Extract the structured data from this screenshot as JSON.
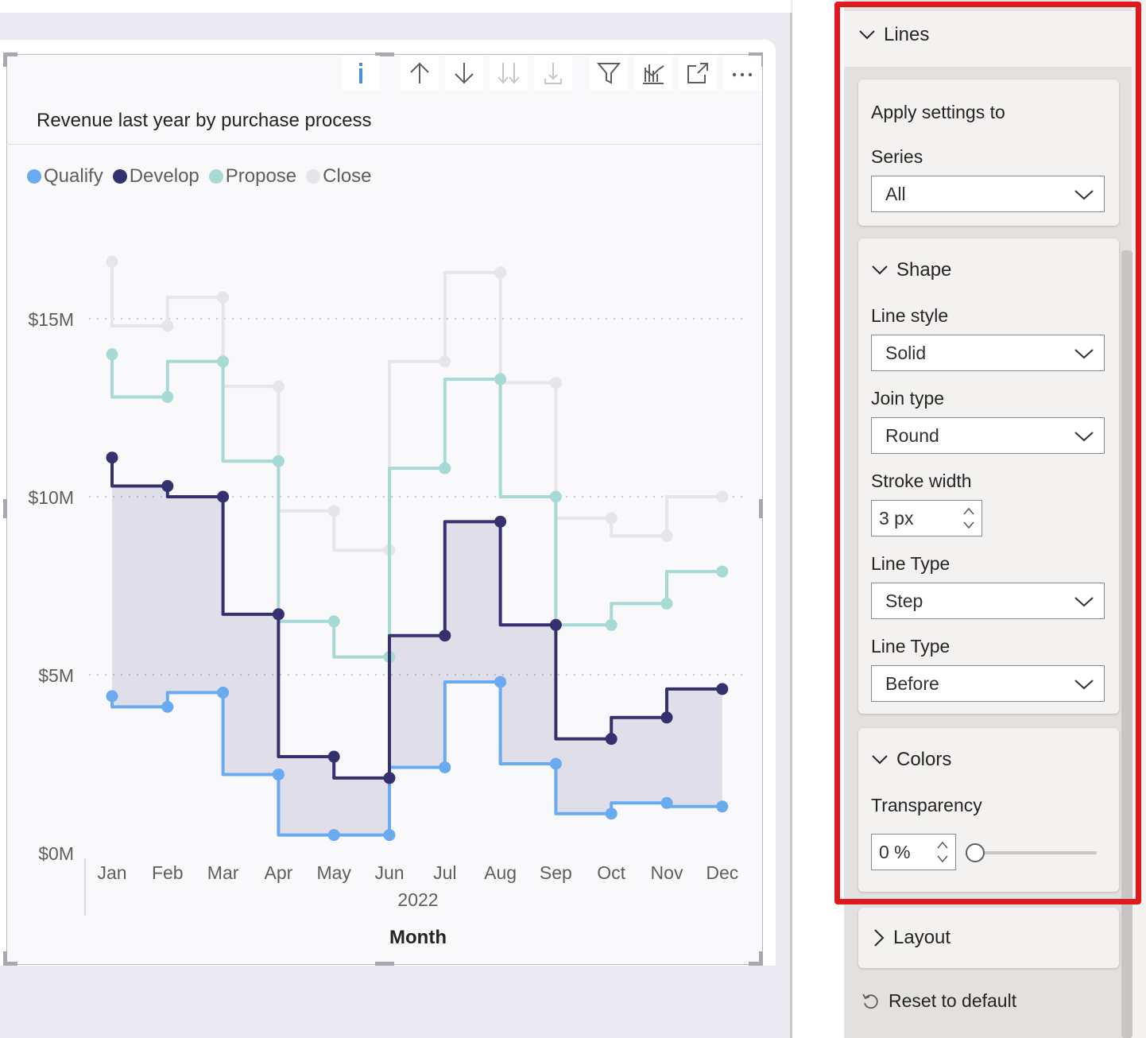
{
  "chart_data": {
    "type": "line",
    "line_style": "step-before",
    "title": "Revenue last year by purchase process",
    "xlabel": "Month",
    "x_group_label": "2022",
    "ylabel": "",
    "categories": [
      "Jan",
      "Feb",
      "Mar",
      "Apr",
      "May",
      "Jun",
      "Jul",
      "Aug",
      "Sep",
      "Oct",
      "Nov",
      "Dec"
    ],
    "y_ticks": [
      "$0M",
      "$5M",
      "$10M",
      "$15M"
    ],
    "y_tick_values": [
      0,
      5,
      10,
      15
    ],
    "ylim": [
      0,
      17.5
    ],
    "grid": "horizontal dotted",
    "legend_position": "top-left",
    "shaded_band_between": [
      "Qualify",
      "Develop"
    ],
    "series": [
      {
        "name": "Qualify",
        "color": "#6aaaf0",
        "values": [
          4.4,
          4.1,
          4.5,
          2.2,
          0.5,
          0.5,
          2.4,
          4.8,
          2.5,
          1.1,
          1.4,
          1.3
        ]
      },
      {
        "name": "Develop",
        "color": "#35306e",
        "values": [
          11.1,
          10.3,
          10.0,
          6.7,
          2.7,
          2.1,
          6.1,
          9.3,
          6.4,
          3.2,
          3.8,
          4.6
        ]
      },
      {
        "name": "Propose",
        "color": "#a7dad5",
        "values": [
          14.0,
          12.8,
          13.8,
          11.0,
          6.5,
          5.5,
          10.8,
          13.3,
          10.0,
          6.4,
          7.0,
          7.9
        ]
      },
      {
        "name": "Close",
        "color": "#e6e6e8",
        "values": [
          16.6,
          14.8,
          15.6,
          13.1,
          9.6,
          8.5,
          13.8,
          16.3,
          13.2,
          9.4,
          8.9,
          10.0
        ]
      }
    ]
  },
  "pane": {
    "lines_title": "Lines",
    "apply_title": "Apply settings to",
    "series_label": "Series",
    "series_value": "All",
    "shape_title": "Shape",
    "line_style_label": "Line style",
    "line_style_value": "Solid",
    "join_type_label": "Join type",
    "join_type_value": "Round",
    "stroke_width_label": "Stroke width",
    "stroke_width_value": "3 px",
    "line_type_label": "Line Type",
    "line_type_value": "Step",
    "line_type2_label": "Line Type",
    "line_type2_value": "Before",
    "colors_title": "Colors",
    "transparency_label": "Transparency",
    "transparency_value": "0 %",
    "transparency_level": 0,
    "layout_title": "Layout",
    "reset_label": "Reset to default",
    "highlight_color": "#e0191d"
  },
  "toolbar": {
    "icons": [
      "info-icon",
      "arrow-up-icon",
      "arrow-down-icon",
      "double-arrow-down-icon",
      "expand-hierarchy-icon",
      "filter-icon",
      "focus-analytics-icon",
      "focus-mode-icon",
      "more-options-icon"
    ]
  }
}
